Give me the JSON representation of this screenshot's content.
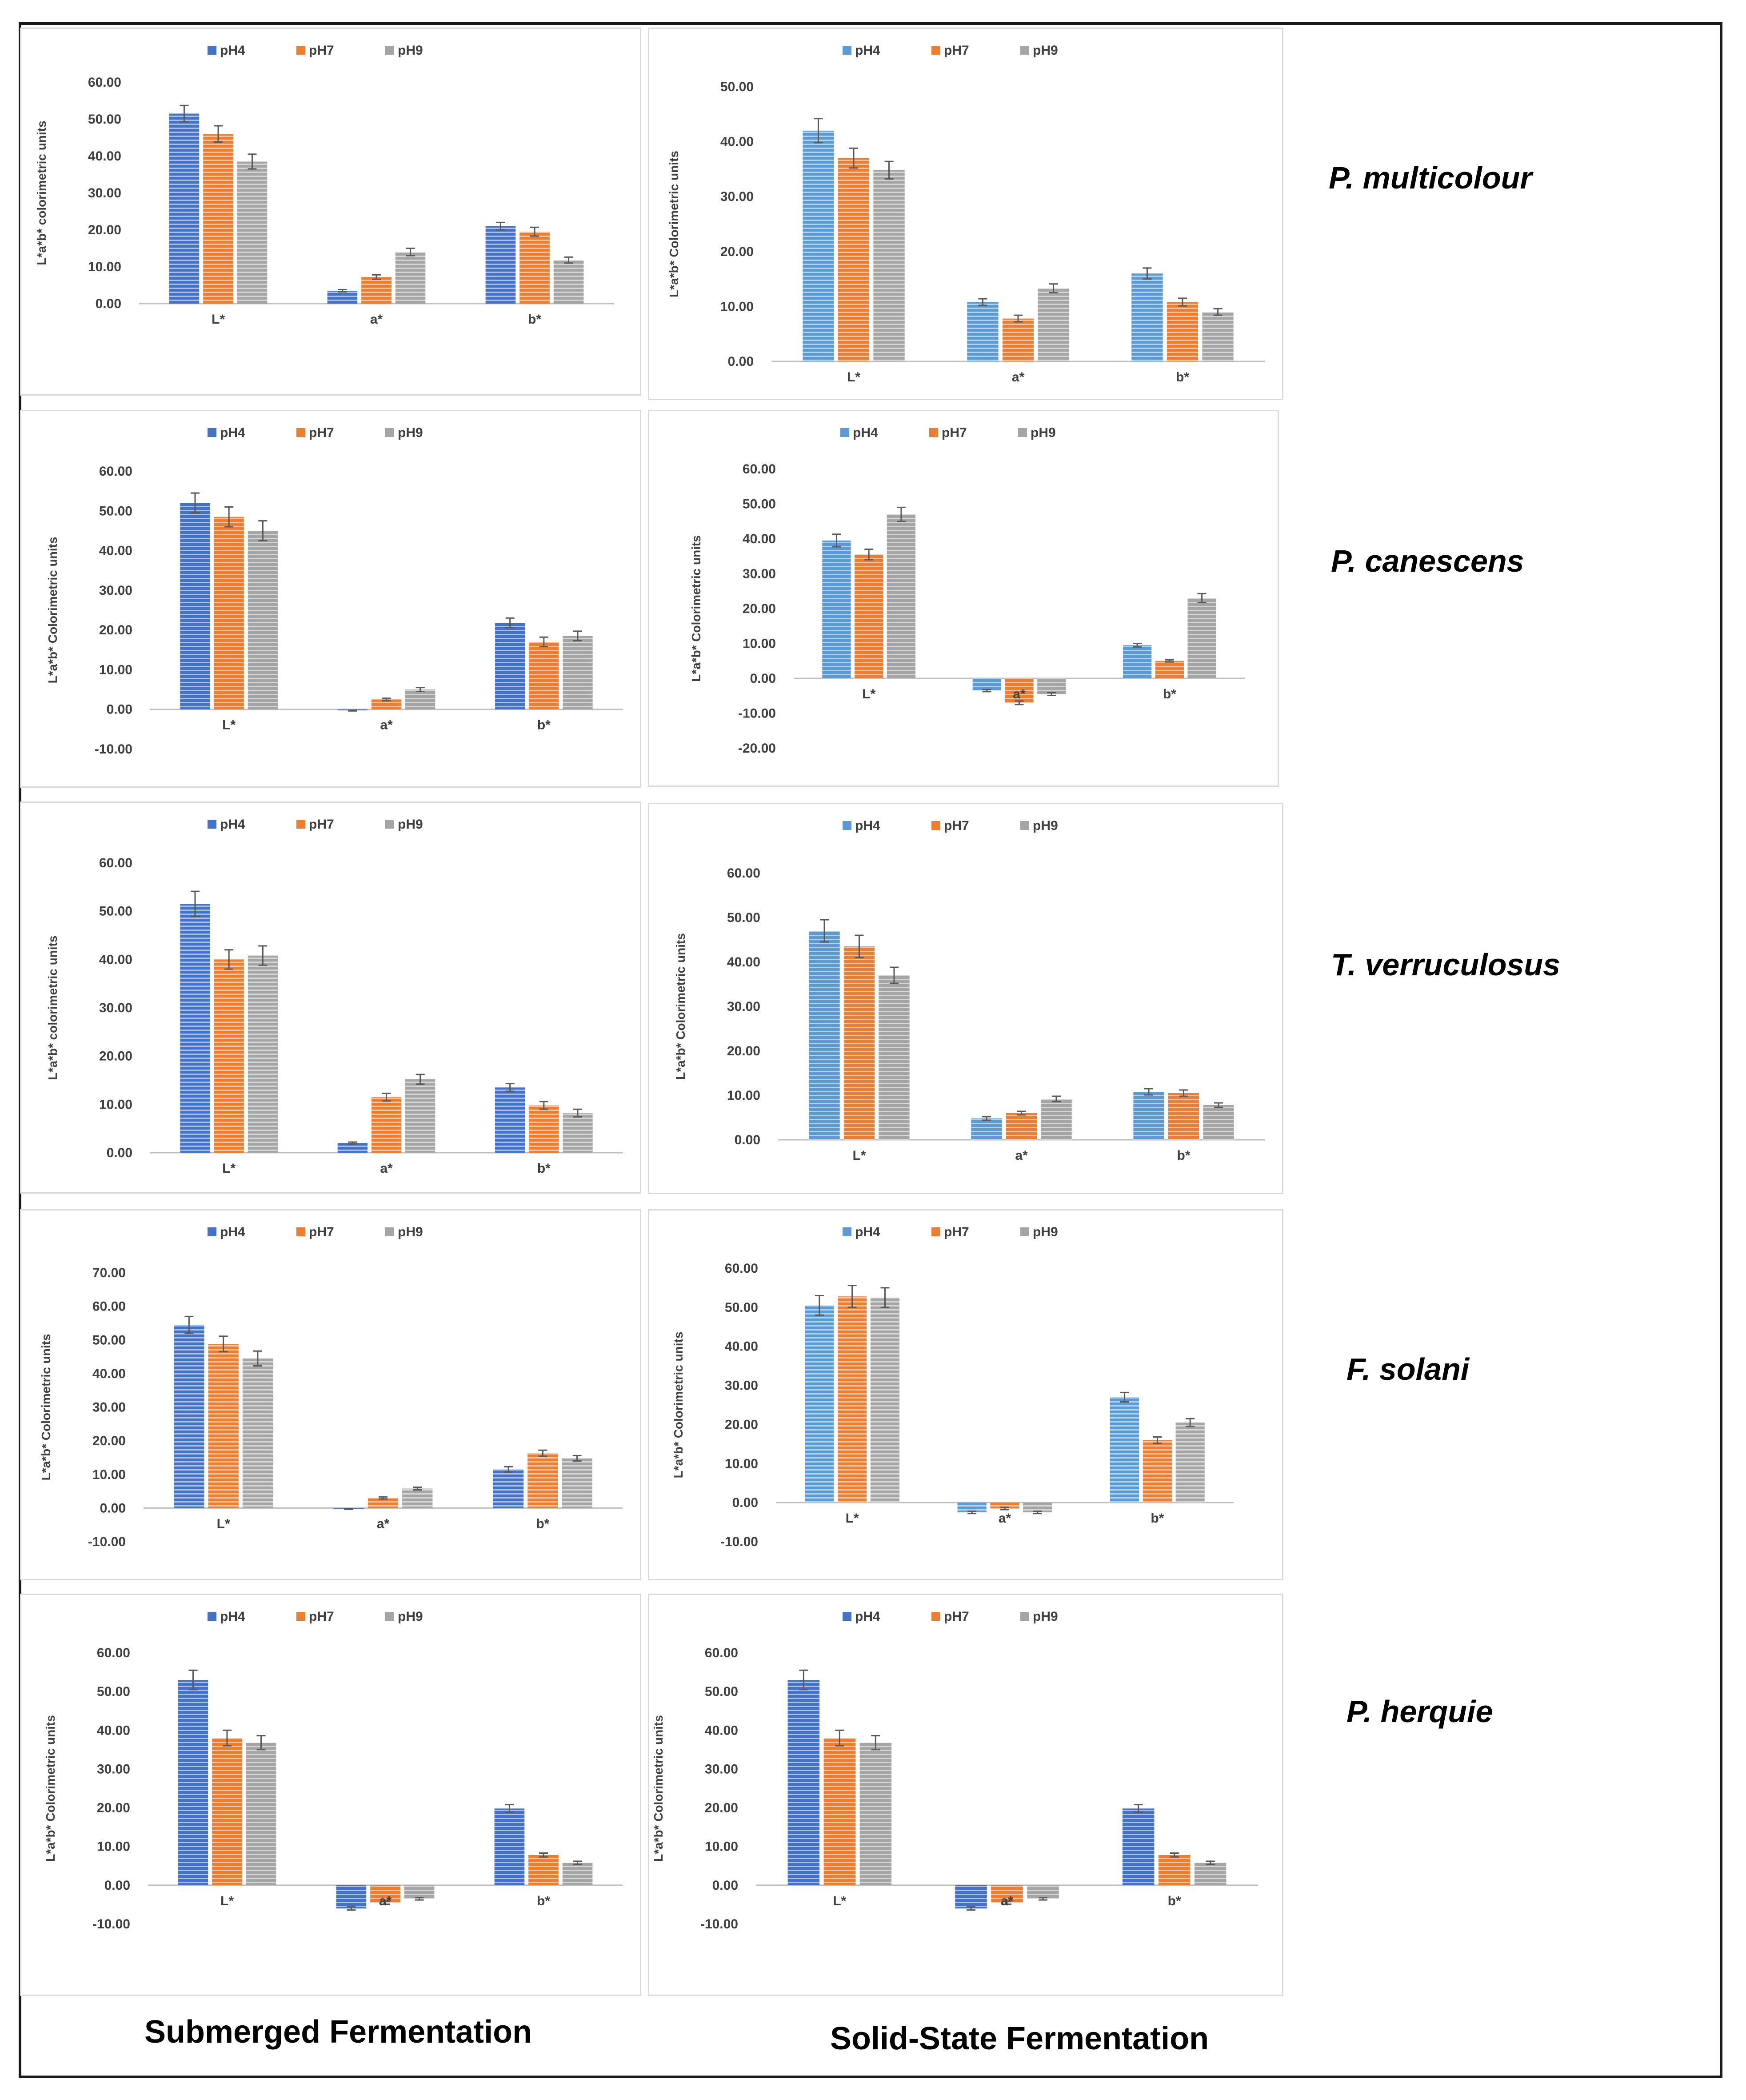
{
  "colors": {
    "pH4_dark": "#4472c4",
    "pH4_light": "#5b9bd5",
    "pH7": "#ed7d31",
    "pH9": "#a5a5a5",
    "axis": "#bfbfbf",
    "error": "#595959"
  },
  "species": [
    "P. multicolour",
    "P. canescens",
    "T. verruculosus",
    "F. solani",
    "P. herquie"
  ],
  "captions": {
    "submerged": "Submerged Fermentation",
    "solid_state": "Solid-State Fermentation"
  },
  "chart_data": [
    {
      "type": "bar",
      "id": "sf-p-multicolour",
      "title": "",
      "categories": [
        "L*",
        "a*",
        "b*"
      ],
      "legend": [
        "pH4",
        "pH7",
        "pH9"
      ],
      "legend_position": "top",
      "ylabel": "L*a*b* colorimetric units",
      "ylim": [
        0,
        60
      ],
      "yticks": [
        "0.00",
        "10.00",
        "20.00",
        "30.00",
        "40.00",
        "50.00",
        "60.00"
      ],
      "palette": "dark",
      "series": [
        {
          "name": "pH4",
          "values": [
            51.5,
            3.5,
            21.0
          ],
          "errors": [
            2.2,
            0.3,
            1.0
          ]
        },
        {
          "name": "pH7",
          "values": [
            46.0,
            7.2,
            19.5
          ],
          "errors": [
            2.2,
            0.6,
            1.2
          ]
        },
        {
          "name": "pH9",
          "values": [
            38.5,
            14.0,
            11.8
          ],
          "errors": [
            2.0,
            1.0,
            0.8
          ]
        }
      ]
    },
    {
      "type": "bar",
      "id": "ssf-p-multicolour",
      "title": "",
      "categories": [
        "L*",
        "a*",
        "b*"
      ],
      "legend": [
        "pH4",
        "pH7",
        "pH9"
      ],
      "legend_position": "top",
      "ylabel": "L*a*b* Colorimetric units",
      "ylim": [
        0,
        50
      ],
      "yticks": [
        "0.00",
        "10.00",
        "20.00",
        "30.00",
        "40.00",
        "50.00"
      ],
      "palette": "light",
      "series": [
        {
          "name": "pH4",
          "values": [
            42.0,
            10.8,
            16.0
          ],
          "errors": [
            2.2,
            0.6,
            1.0
          ]
        },
        {
          "name": "pH7",
          "values": [
            37.0,
            7.8,
            10.8
          ],
          "errors": [
            1.8,
            0.6,
            0.7
          ]
        },
        {
          "name": "pH9",
          "values": [
            34.8,
            13.3,
            9.0
          ],
          "errors": [
            1.6,
            0.8,
            0.6
          ]
        }
      ]
    },
    {
      "type": "bar",
      "id": "sf-p-canescens",
      "title": "",
      "categories": [
        "L*",
        "a*",
        "b*"
      ],
      "legend": [
        "pH4",
        "pH7",
        "pH9"
      ],
      "legend_position": "top",
      "ylabel": "L*a*b* Colorimetric units",
      "ylim": [
        -10,
        60
      ],
      "yticks": [
        "-10.00",
        "0.00",
        "10.00",
        "20.00",
        "30.00",
        "40.00",
        "50.00",
        "60.00"
      ],
      "palette": "dark",
      "series": [
        {
          "name": "pH4",
          "values": [
            52.0,
            -0.3,
            21.8
          ],
          "errors": [
            2.5,
            0.1,
            1.2
          ]
        },
        {
          "name": "pH7",
          "values": [
            48.5,
            2.5,
            17.0
          ],
          "errors": [
            2.5,
            0.3,
            1.2
          ]
        },
        {
          "name": "pH9",
          "values": [
            45.0,
            5.0,
            18.5
          ],
          "errors": [
            2.5,
            0.5,
            1.2
          ]
        }
      ]
    },
    {
      "type": "bar",
      "id": "ssf-p-canescens",
      "title": "",
      "categories": [
        "L*",
        "a*",
        "b*"
      ],
      "legend": [
        "pH4",
        "pH7",
        "pH9"
      ],
      "legend_position": "top",
      "ylabel": "L*a*b* Colorimetric units",
      "ylim": [
        -20,
        60
      ],
      "yticks": [
        "-20.00",
        "-10.00",
        "0.00",
        "10.00",
        "20.00",
        "30.00",
        "40.00",
        "50.00",
        "60.00"
      ],
      "palette": "light",
      "series": [
        {
          "name": "pH4",
          "values": [
            39.5,
            -3.5,
            9.5
          ],
          "errors": [
            1.8,
            0.3,
            0.5
          ]
        },
        {
          "name": "pH7",
          "values": [
            35.5,
            -7.0,
            5.0
          ],
          "errors": [
            1.5,
            0.5,
            0.3
          ]
        },
        {
          "name": "pH9",
          "values": [
            47.0,
            -4.5,
            23.0
          ],
          "errors": [
            2.0,
            0.4,
            1.3
          ]
        }
      ]
    },
    {
      "type": "bar",
      "id": "sf-t-verruculosus",
      "title": "",
      "categories": [
        "L*",
        "a*",
        "b*"
      ],
      "legend": [
        "pH4",
        "pH7",
        "pH9"
      ],
      "legend_position": "top",
      "ylabel": "L*a*b* colorimetric units",
      "ylim": [
        0,
        60
      ],
      "yticks": [
        "0.00",
        "10.00",
        "20.00",
        "30.00",
        "40.00",
        "50.00",
        "60.00"
      ],
      "palette": "dark",
      "series": [
        {
          "name": "pH4",
          "values": [
            51.5,
            2.0,
            13.5
          ],
          "errors": [
            2.6,
            0.2,
            0.8
          ]
        },
        {
          "name": "pH7",
          "values": [
            40.0,
            11.5,
            9.8
          ],
          "errors": [
            2.0,
            0.8,
            0.8
          ]
        },
        {
          "name": "pH9",
          "values": [
            40.8,
            15.2,
            8.2
          ],
          "errors": [
            2.0,
            1.0,
            0.8
          ]
        }
      ]
    },
    {
      "type": "bar",
      "id": "ssf-t-verruculosus",
      "title": "",
      "categories": [
        "L*",
        "a*",
        "b*"
      ],
      "legend": [
        "pH4",
        "pH7",
        "pH9"
      ],
      "legend_position": "top",
      "ylabel": "L*a*b* Colorimetric units",
      "ylim": [
        0,
        60
      ],
      "yticks": [
        "0.00",
        "10.00",
        "20.00",
        "30.00",
        "40.00",
        "50.00",
        "60.00"
      ],
      "palette": "light",
      "series": [
        {
          "name": "pH4",
          "values": [
            47.0,
            4.8,
            10.8
          ],
          "errors": [
            2.5,
            0.4,
            0.7
          ]
        },
        {
          "name": "pH7",
          "values": [
            43.5,
            6.0,
            10.5
          ],
          "errors": [
            2.5,
            0.4,
            0.7
          ]
        },
        {
          "name": "pH9",
          "values": [
            37.0,
            9.2,
            7.8
          ],
          "errors": [
            1.8,
            0.6,
            0.5
          ]
        }
      ]
    },
    {
      "type": "bar",
      "id": "sf-f-solani",
      "title": "",
      "categories": [
        "L*",
        "a*",
        "b*"
      ],
      "legend": [
        "pH4",
        "pH7",
        "pH9"
      ],
      "legend_position": "top",
      "ylabel": "L*a*b* Colorimetric units",
      "ylim": [
        -10,
        70
      ],
      "yticks": [
        "-10.00",
        "0.00",
        "10.00",
        "20.00",
        "30.00",
        "40.00",
        "50.00",
        "60.00",
        "70.00"
      ],
      "palette": "dark",
      "series": [
        {
          "name": "pH4",
          "values": [
            54.5,
            -0.3,
            11.5
          ],
          "errors": [
            2.5,
            0.1,
            0.8
          ]
        },
        {
          "name": "pH7",
          "values": [
            48.8,
            3.0,
            16.3
          ],
          "errors": [
            2.3,
            0.3,
            0.9
          ]
        },
        {
          "name": "pH9",
          "values": [
            44.5,
            5.8,
            14.8
          ],
          "errors": [
            2.2,
            0.4,
            0.8
          ]
        }
      ]
    },
    {
      "type": "bar",
      "id": "ssf-f-solani",
      "title": "",
      "categories": [
        "L*",
        "a*",
        "b*"
      ],
      "legend": [
        "pH4",
        "pH7",
        "pH9"
      ],
      "legend_position": "top",
      "ylabel": "L*a*b* Colorimetric units",
      "ylim": [
        -10,
        60
      ],
      "yticks": [
        "-10.00",
        "0.00",
        "10.00",
        "20.00",
        "30.00",
        "40.00",
        "50.00",
        "60.00"
      ],
      "palette": "light",
      "series": [
        {
          "name": "pH4",
          "values": [
            50.5,
            -2.5,
            27.0
          ],
          "errors": [
            2.5,
            0.3,
            1.2
          ]
        },
        {
          "name": "pH7",
          "values": [
            52.8,
            -1.5,
            16.0
          ],
          "errors": [
            2.8,
            0.3,
            0.8
          ]
        },
        {
          "name": "pH9",
          "values": [
            52.5,
            -2.5,
            20.5
          ],
          "errors": [
            2.5,
            0.3,
            1.0
          ]
        }
      ]
    },
    {
      "type": "bar",
      "id": "sf-p-herquie",
      "title": "",
      "categories": [
        "L*",
        "a*",
        "b*"
      ],
      "legend": [
        "pH4",
        "pH7",
        "pH9"
      ],
      "legend_position": "top",
      "ylabel": "L*a*b* Colorimetric units",
      "ylim": [
        -10,
        60
      ],
      "yticks": [
        "-10.00",
        "0.00",
        "10.00",
        "20.00",
        "30.00",
        "40.00",
        "50.00",
        "60.00"
      ],
      "palette": "dark",
      "series": [
        {
          "name": "pH4",
          "values": [
            53.0,
            -6.0,
            19.8
          ],
          "errors": [
            2.5,
            0.4,
            1.0
          ]
        },
        {
          "name": "pH7",
          "values": [
            38.0,
            -4.5,
            7.8
          ],
          "errors": [
            2.0,
            0.4,
            0.5
          ]
        },
        {
          "name": "pH9",
          "values": [
            36.8,
            -3.5,
            5.8
          ],
          "errors": [
            1.8,
            0.3,
            0.4
          ]
        }
      ]
    },
    {
      "type": "bar",
      "id": "ssf-p-herquie",
      "title": "",
      "categories": [
        "L*",
        "a*",
        "b*"
      ],
      "legend": [
        "pH4",
        "pH7",
        "pH9"
      ],
      "legend_position": "top",
      "ylabel": "L*a*b* Colorimetric units",
      "ylim": [
        -10,
        60
      ],
      "yticks": [
        "-10.00",
        "0.00",
        "10.00",
        "20.00",
        "30.00",
        "40.00",
        "50.00",
        "60.00"
      ],
      "palette": "dark",
      "series": [
        {
          "name": "pH4",
          "values": [
            53.0,
            -6.0,
            19.8
          ],
          "errors": [
            2.5,
            0.4,
            1.0
          ]
        },
        {
          "name": "pH7",
          "values": [
            38.0,
            -4.5,
            7.8
          ],
          "errors": [
            2.0,
            0.4,
            0.5
          ]
        },
        {
          "name": "pH9",
          "values": [
            36.8,
            -3.5,
            5.8
          ],
          "errors": [
            1.8,
            0.3,
            0.4
          ]
        }
      ]
    }
  ]
}
